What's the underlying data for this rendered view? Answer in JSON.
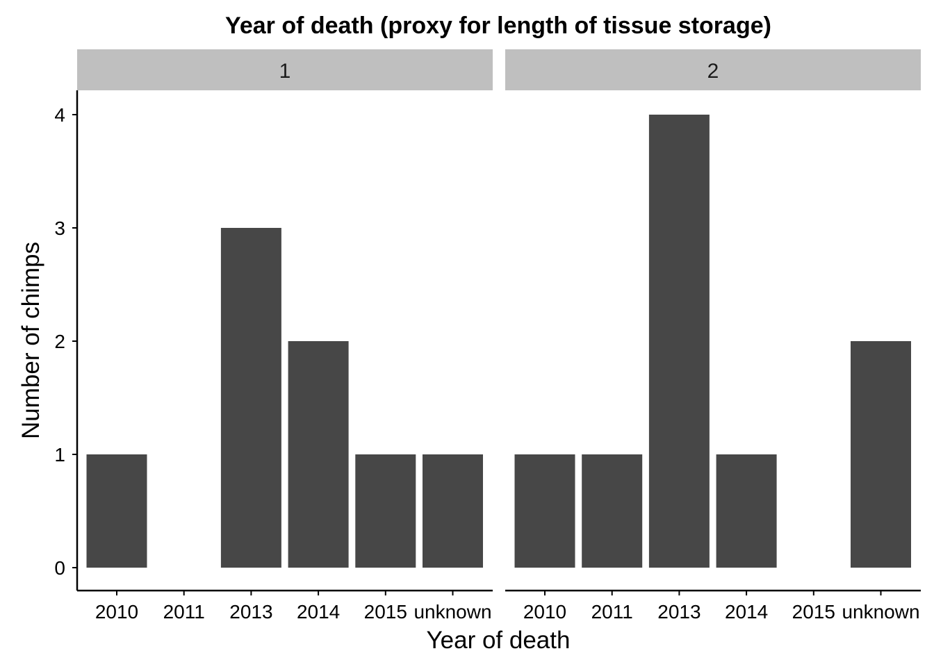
{
  "chart_data": {
    "type": "bar",
    "title": "Year of death (proxy for length of tissue storage)",
    "xlabel": "Year of death",
    "ylabel": "Number of chimps",
    "categories": [
      "2010",
      "2011",
      "2013",
      "2014",
      "2015",
      "unknown"
    ],
    "ylim": [
      0,
      4
    ],
    "yticks": [
      "0",
      "1",
      "2",
      "3",
      "4"
    ],
    "grid": false,
    "bar_color": "#474747",
    "strip_color": "#bfbfbf",
    "facets": [
      {
        "label": "1",
        "values": [
          1,
          0,
          3,
          2,
          1,
          1
        ]
      },
      {
        "label": "2",
        "values": [
          1,
          1,
          4,
          1,
          0,
          2
        ]
      }
    ]
  }
}
